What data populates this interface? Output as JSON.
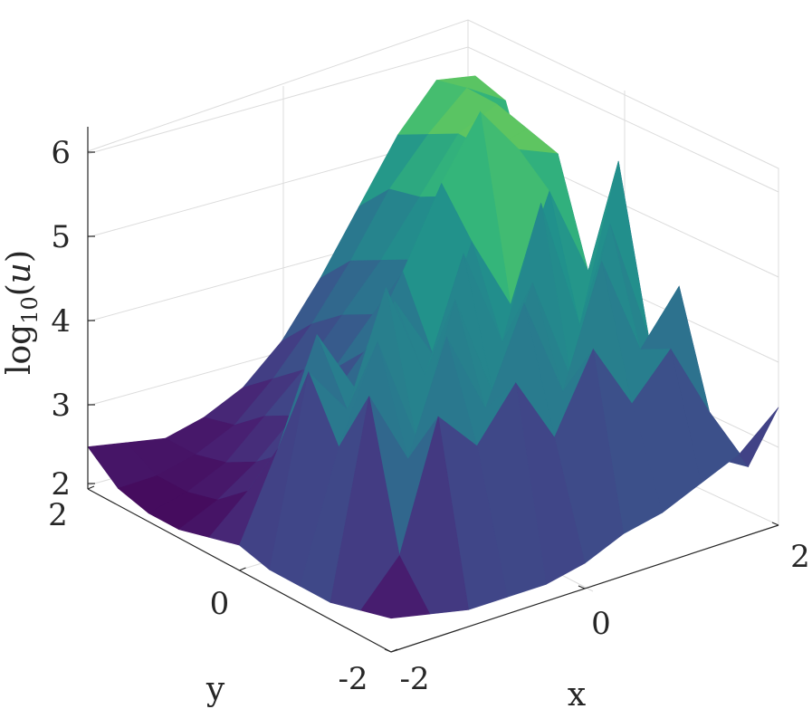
{
  "chart_data": {
    "type": "surface",
    "title": "",
    "colormap": "viridis",
    "xlabel": "x",
    "ylabel": "y",
    "zlabel": "log10(u)",
    "zlabel_display": {
      "base": "log",
      "sub": "10",
      "arg": "u"
    },
    "xlim": [
      -2,
      2
    ],
    "ylim": [
      -2,
      2
    ],
    "zlim": [
      2,
      6.3
    ],
    "grid": true,
    "x_ticks": [
      {
        "value": -2,
        "label": "-2"
      },
      {
        "value": 0,
        "label": "0"
      },
      {
        "value": 2,
        "label": "2"
      }
    ],
    "y_ticks": [
      {
        "value": -2,
        "label": "-2"
      },
      {
        "value": 0,
        "label": "0"
      },
      {
        "value": 2,
        "label": "2"
      }
    ],
    "z_ticks": [
      {
        "value": 2,
        "label": "2"
      },
      {
        "value": 3,
        "label": "3"
      },
      {
        "value": 4,
        "label": "4"
      },
      {
        "value": 5,
        "label": "5"
      },
      {
        "value": 6,
        "label": "6"
      }
    ],
    "surface": {
      "x": [
        -2,
        -1.6,
        -1.2,
        -0.8,
        -0.4,
        0,
        0.4,
        0.8,
        1.2,
        1.6,
        2
      ],
      "y": [
        -2,
        -1.6,
        -1.2,
        -0.8,
        -0.4,
        0,
        0.4,
        0.8,
        1.2,
        1.6,
        2
      ],
      "z": [
        [
          2.4,
          2.3,
          2.2,
          2.2,
          2.2,
          2.3,
          2.5,
          2.6,
          2.8,
          3.0,
          3.4
        ],
        [
          2.3,
          2.8,
          4.3,
          3.8,
          4.4,
          3.6,
          4.5,
          3.7,
          4.2,
          3.3,
          2.5
        ],
        [
          2.2,
          4.5,
          3.6,
          4.9,
          3.9,
          5.0,
          3.8,
          5.2,
          4.0,
          4.6,
          2.4
        ],
        [
          2.2,
          3.7,
          4.8,
          3.5,
          5.0,
          3.7,
          4.9,
          3.6,
          5.3,
          3.8,
          2.4
        ],
        [
          2.2,
          4.4,
          3.8,
          5.1,
          3.9,
          5.2,
          4.0,
          5.5,
          3.9,
          5.7,
          2.5
        ],
        [
          2.3,
          3.3,
          4.5,
          3.7,
          4.6,
          3.8,
          5.0,
          4.1,
          5.3,
          4.2,
          2.6
        ],
        [
          2.2,
          2.6,
          2.9,
          3.3,
          3.8,
          4.6,
          5.5,
          6.2,
          5.6,
          5.4,
          3.0
        ],
        [
          2.1,
          2.3,
          2.6,
          3.0,
          3.4,
          3.9,
          4.4,
          5.0,
          5.4,
          5.5,
          3.5
        ],
        [
          2.1,
          2.2,
          2.4,
          2.8,
          3.2,
          3.7,
          4.2,
          4.8,
          5.4,
          5.6,
          4.2
        ],
        [
          2.2,
          2.2,
          2.3,
          2.5,
          2.9,
          3.4,
          4.0,
          4.7,
          5.2,
          5.6,
          5.3
        ],
        [
          2.5,
          2.4,
          2.3,
          2.4,
          2.6,
          3.0,
          3.6,
          4.3,
          5.0,
          5.5,
          5.4
        ]
      ]
    }
  }
}
